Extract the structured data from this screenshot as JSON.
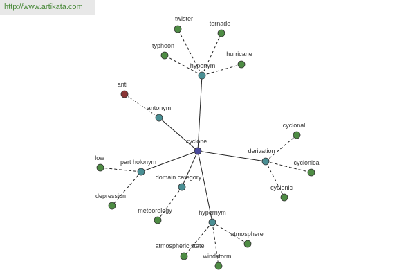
{
  "header": {
    "url": "http://www.artikata.com"
  },
  "nodes": [
    {
      "label": "cyclone"
    },
    {
      "label": "hyponym"
    },
    {
      "label": "twister"
    },
    {
      "label": "tornado"
    },
    {
      "label": "typhoon"
    },
    {
      "label": "hurricane"
    },
    {
      "label": "antonym"
    },
    {
      "label": "anti"
    },
    {
      "label": "part holonym"
    },
    {
      "label": "low"
    },
    {
      "label": "depression"
    },
    {
      "label": "domain category"
    },
    {
      "label": "meteorology"
    },
    {
      "label": "hypernym"
    },
    {
      "label": "atmosphere"
    },
    {
      "label": "atmospheric state"
    },
    {
      "label": "windstorm"
    },
    {
      "label": "derivation"
    },
    {
      "label": "cyclonal"
    },
    {
      "label": "cyclonical"
    },
    {
      "label": "cyclonic"
    }
  ]
}
